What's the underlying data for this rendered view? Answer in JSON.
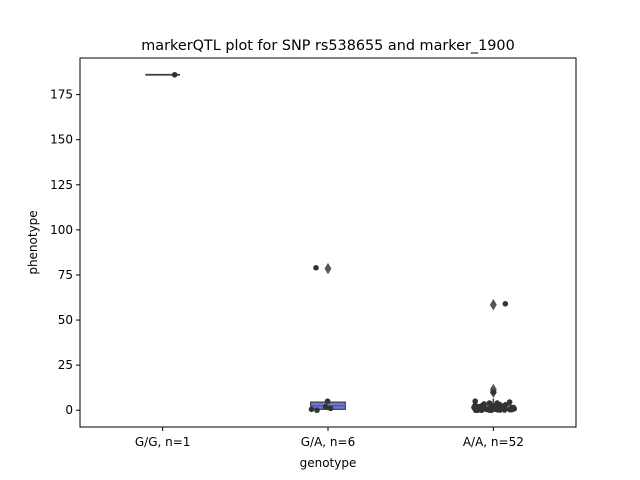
{
  "chart_data": {
    "type": "box",
    "title": "markerQTL plot for SNP rs538655 and marker_1900",
    "xlabel": "genotype",
    "ylabel": "phenotype",
    "categories": [
      "G/G, n=1",
      "G/A, n=6",
      "A/A, n=52"
    ],
    "ylim": [
      -9.3,
      195.3
    ],
    "yticks": [
      0,
      25,
      50,
      75,
      100,
      125,
      150,
      175
    ],
    "grid": false,
    "legend": "none",
    "colors": {
      "box": "#7079c8",
      "median": "#4c52e0",
      "stroke": "#3d3d3d",
      "point": "#333333"
    },
    "boxes": [
      {
        "category": "G/G, n=1",
        "q1": 186,
        "median": 186,
        "q3": 186,
        "whisker_low": 186,
        "whisker_high": 186,
        "fliers": []
      },
      {
        "category": "G/A, n=6",
        "q1": 0.5,
        "median": 2.5,
        "q3": 4.5,
        "whisker_low": 0,
        "whisker_high": 5,
        "fliers": [
          78.5
        ]
      },
      {
        "category": "A/A, n=52",
        "q1": 0.5,
        "median": 1.2,
        "q3": 3,
        "whisker_low": 0,
        "whisker_high": 6.5,
        "fliers": [
          58.5,
          11.5,
          10
        ]
      }
    ],
    "points": [
      {
        "category": "G/G, n=1",
        "values": [
          186
        ]
      },
      {
        "category": "G/A, n=6",
        "values": [
          79,
          5,
          1,
          0.5,
          0,
          2
        ]
      },
      {
        "category": "A/A, n=52",
        "values": [
          59,
          10,
          5,
          4.5,
          4,
          4,
          3.5,
          3,
          3,
          2.8,
          2.5,
          2.5,
          2.2,
          2,
          2,
          2,
          1.8,
          1.6,
          1.5,
          1.5,
          1.4,
          1.3,
          1.2,
          1.1,
          1,
          1,
          1,
          0.9,
          0.8,
          0.8,
          0.7,
          0.7,
          0.6,
          0.6,
          0.5,
          0.5,
          0.5,
          0.4,
          0.4,
          0.3,
          0.3,
          0.3,
          0.2,
          0.2,
          0.2,
          0.1,
          0.1,
          0.1,
          0,
          0,
          0,
          0
        ]
      }
    ]
  }
}
